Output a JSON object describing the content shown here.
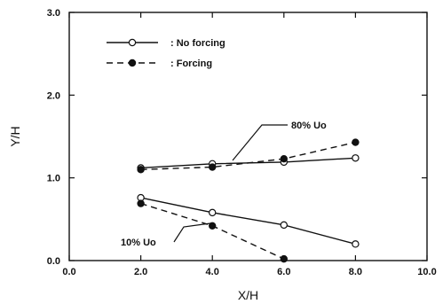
{
  "chart_data": {
    "type": "line",
    "xlabel": "X/H",
    "ylabel": "Y/H",
    "xlim": [
      0,
      10
    ],
    "ylim": [
      0,
      3
    ],
    "xticks": [
      "0.0",
      "2.0",
      "4.0",
      "6.0",
      "8.0",
      "10.0"
    ],
    "yticks": [
      "0.0",
      "1.0",
      "2.0",
      "3.0"
    ],
    "grid": false,
    "legend_position": "top-left",
    "legend": [
      {
        "marker": "open-circle",
        "line": "solid",
        "label": ": No forcing"
      },
      {
        "marker": "filled-circle",
        "line": "dashed",
        "label": ": Forcing"
      }
    ],
    "annotations": [
      {
        "text": "80% Uo"
      },
      {
        "text": "10% Uo"
      }
    ],
    "series": [
      {
        "level": "80% Uo",
        "forcing": false,
        "marker": "open-circle",
        "line": "solid",
        "x": [
          2,
          4,
          6,
          8
        ],
        "y": [
          1.12,
          1.17,
          1.19,
          1.24
        ]
      },
      {
        "level": "80% Uo",
        "forcing": true,
        "marker": "filled-circle",
        "line": "dashed",
        "x": [
          2,
          4,
          6,
          8
        ],
        "y": [
          1.1,
          1.13,
          1.23,
          1.43
        ]
      },
      {
        "level": "10% Uo",
        "forcing": false,
        "marker": "open-circle",
        "line": "solid",
        "x": [
          2,
          4,
          6,
          8
        ],
        "y": [
          0.76,
          0.58,
          0.43,
          0.2
        ]
      },
      {
        "level": "10% Uo",
        "forcing": true,
        "marker": "filled-circle",
        "line": "dashed",
        "x": [
          2,
          4,
          6
        ],
        "y": [
          0.69,
          0.42,
          0.02
        ]
      }
    ]
  }
}
